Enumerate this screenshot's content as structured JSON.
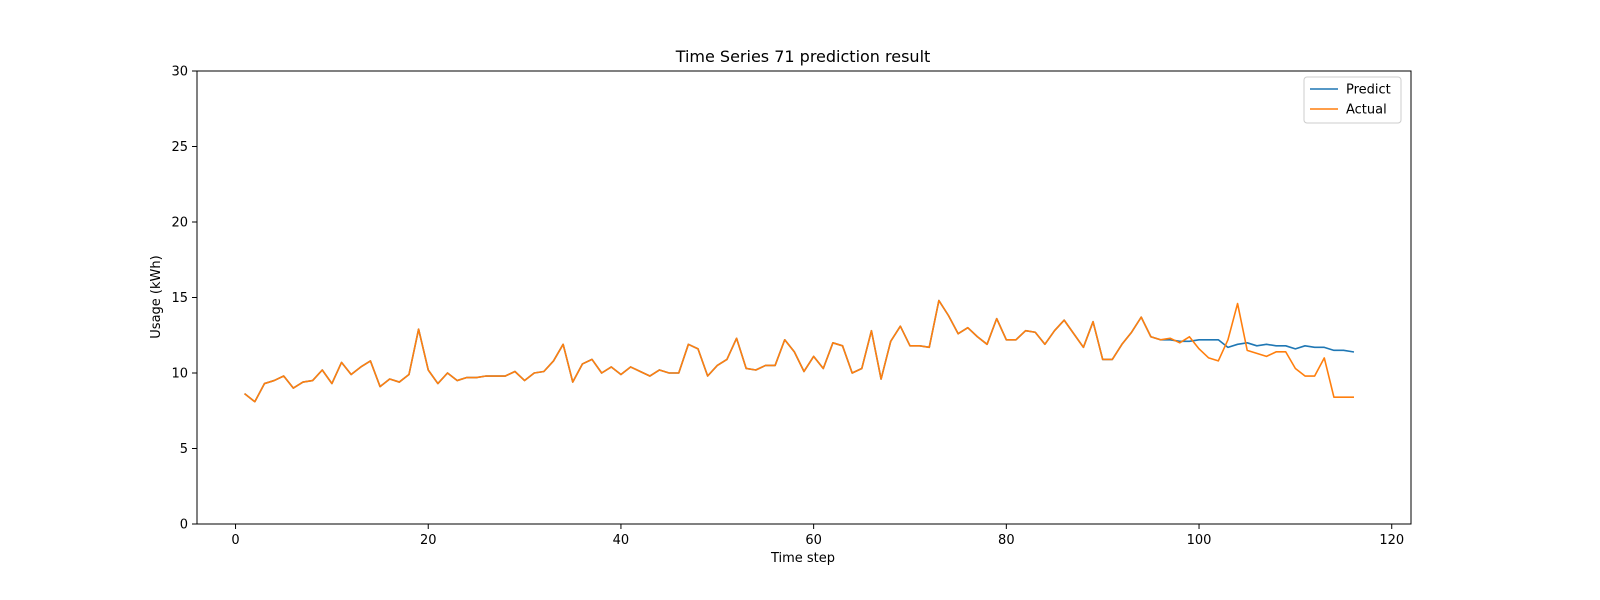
{
  "chart_data": {
    "type": "line",
    "title": "Time Series 71 prediction result",
    "xlabel": "Time step",
    "ylabel": "Usage (kWh)",
    "xlim": [
      -4,
      122
    ],
    "ylim": [
      0,
      30
    ],
    "xticks": [
      0,
      20,
      40,
      60,
      80,
      100,
      120
    ],
    "yticks": [
      0,
      5,
      10,
      15,
      20,
      25,
      30
    ],
    "grid": false,
    "legend_position": "top-right",
    "series": [
      {
        "name": "Predict",
        "color": "#1f77b4",
        "x": [
          1,
          2,
          3,
          4,
          5,
          6,
          7,
          8,
          9,
          10,
          11,
          12,
          13,
          14,
          15,
          16,
          17,
          18,
          19,
          20,
          21,
          22,
          23,
          24,
          25,
          26,
          27,
          28,
          29,
          30,
          31,
          32,
          33,
          34,
          35,
          36,
          37,
          38,
          39,
          40,
          41,
          42,
          43,
          44,
          45,
          46,
          47,
          48,
          49,
          50,
          51,
          52,
          53,
          54,
          55,
          56,
          57,
          58,
          59,
          60,
          61,
          62,
          63,
          64,
          65,
          66,
          67,
          68,
          69,
          70,
          71,
          72,
          73,
          74,
          75,
          76,
          77,
          78,
          79,
          80,
          81,
          82,
          83,
          84,
          85,
          86,
          87,
          88,
          89,
          90,
          91,
          92,
          93,
          94,
          95,
          96,
          97,
          98,
          99,
          100,
          101,
          102,
          103,
          104,
          105,
          106,
          107,
          108,
          109,
          110,
          111,
          112,
          113,
          114,
          115,
          116
        ],
        "y": [
          8.6,
          8.1,
          9.3,
          9.5,
          9.8,
          9.0,
          9.4,
          9.5,
          10.2,
          9.3,
          10.7,
          9.9,
          10.4,
          10.8,
          9.1,
          9.6,
          9.4,
          9.9,
          12.9,
          10.2,
          9.3,
          10.0,
          9.5,
          9.7,
          9.7,
          9.8,
          9.8,
          9.8,
          10.1,
          9.5,
          10.0,
          10.1,
          10.8,
          11.9,
          9.4,
          10.6,
          10.9,
          10.0,
          10.4,
          9.9,
          10.4,
          10.1,
          9.8,
          10.2,
          10.0,
          10.0,
          11.9,
          11.6,
          9.8,
          10.5,
          10.9,
          12.3,
          10.3,
          10.2,
          10.5,
          10.5,
          12.2,
          11.4,
          10.1,
          11.1,
          10.3,
          12.0,
          11.8,
          10.0,
          10.3,
          12.8,
          9.6,
          12.1,
          13.1,
          11.8,
          11.8,
          11.7,
          14.8,
          13.8,
          12.6,
          13.0,
          12.4,
          11.9,
          13.6,
          12.2,
          12.2,
          12.8,
          12.7,
          11.9,
          12.8,
          13.5,
          12.6,
          11.7,
          13.4,
          10.9,
          10.9,
          11.9,
          12.7,
          13.7,
          12.4,
          12.2,
          12.2,
          12.1,
          12.1,
          12.2,
          12.2,
          12.2,
          11.7,
          11.9,
          12.0,
          11.8,
          11.9,
          11.8,
          11.8,
          11.6,
          11.8,
          11.7,
          11.7,
          11.5,
          11.5,
          11.4
        ]
      },
      {
        "name": "Actual",
        "color": "#ff7f0e",
        "x": [
          1,
          2,
          3,
          4,
          5,
          6,
          7,
          8,
          9,
          10,
          11,
          12,
          13,
          14,
          15,
          16,
          17,
          18,
          19,
          20,
          21,
          22,
          23,
          24,
          25,
          26,
          27,
          28,
          29,
          30,
          31,
          32,
          33,
          34,
          35,
          36,
          37,
          38,
          39,
          40,
          41,
          42,
          43,
          44,
          45,
          46,
          47,
          48,
          49,
          50,
          51,
          52,
          53,
          54,
          55,
          56,
          57,
          58,
          59,
          60,
          61,
          62,
          63,
          64,
          65,
          66,
          67,
          68,
          69,
          70,
          71,
          72,
          73,
          74,
          75,
          76,
          77,
          78,
          79,
          80,
          81,
          82,
          83,
          84,
          85,
          86,
          87,
          88,
          89,
          90,
          91,
          92,
          93,
          94,
          95,
          96,
          97,
          98,
          99,
          100,
          101,
          102,
          103,
          104,
          105,
          106,
          107,
          108,
          109,
          110,
          111,
          112,
          113,
          114,
          115,
          116
        ],
        "y": [
          8.6,
          8.1,
          9.3,
          9.5,
          9.8,
          9.0,
          9.4,
          9.5,
          10.2,
          9.3,
          10.7,
          9.9,
          10.4,
          10.8,
          9.1,
          9.6,
          9.4,
          9.9,
          12.9,
          10.2,
          9.3,
          10.0,
          9.5,
          9.7,
          9.7,
          9.8,
          9.8,
          9.8,
          10.1,
          9.5,
          10.0,
          10.1,
          10.8,
          11.9,
          9.4,
          10.6,
          10.9,
          10.0,
          10.4,
          9.9,
          10.4,
          10.1,
          9.8,
          10.2,
          10.0,
          10.0,
          11.9,
          11.6,
          9.8,
          10.5,
          10.9,
          12.3,
          10.3,
          10.2,
          10.5,
          10.5,
          12.2,
          11.4,
          10.1,
          11.1,
          10.3,
          12.0,
          11.8,
          10.0,
          10.3,
          12.8,
          9.6,
          12.1,
          13.1,
          11.8,
          11.8,
          11.7,
          14.8,
          13.8,
          12.6,
          13.0,
          12.4,
          11.9,
          13.6,
          12.2,
          12.2,
          12.8,
          12.7,
          11.9,
          12.8,
          13.5,
          12.6,
          11.7,
          13.4,
          10.9,
          10.9,
          11.9,
          12.7,
          13.7,
          12.4,
          12.2,
          12.3,
          12.0,
          12.4,
          11.6,
          11.0,
          10.8,
          12.2,
          14.6,
          11.5,
          11.3,
          11.1,
          11.4,
          11.4,
          10.3,
          9.8,
          9.8,
          11.0,
          8.4,
          8.4,
          8.4
        ]
      }
    ]
  }
}
